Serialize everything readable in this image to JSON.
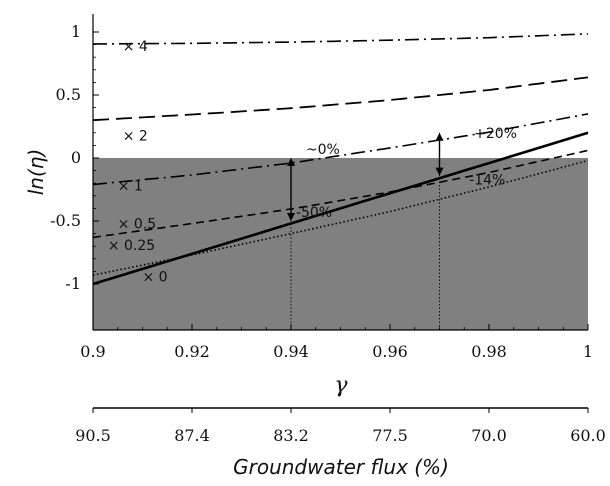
{
  "chart_data": {
    "type": "line",
    "title": "",
    "xlabel": "γ",
    "ylabel": "ln(η)",
    "xlim": [
      0.9,
      1.0
    ],
    "ylim": [
      -1.0,
      1.0
    ],
    "x_ticks": [
      0.9,
      0.92,
      0.94,
      0.96,
      0.98,
      1
    ],
    "x_tick_labels": [
      "0.9",
      "0.92",
      "0.94",
      "0.96",
      "0.98",
      "1"
    ],
    "y_ticks": [
      1,
      0.5,
      0,
      -0.5,
      -1
    ],
    "y_tick_labels": [
      "1",
      "0.5",
      "0",
      "-0.5",
      "-1"
    ],
    "shaded_region": {
      "y_from": -1.0,
      "y_to": 0.0,
      "color": "#808080"
    },
    "series": [
      {
        "name": "× 4",
        "style": "dashdot",
        "label_at": {
          "x": 0.906,
          "y": 0.89
        },
        "x": [
          0.9,
          0.92,
          0.94,
          0.96,
          0.98,
          1.0
        ],
        "y": [
          0.905,
          0.91,
          0.92,
          0.935,
          0.955,
          0.985
        ]
      },
      {
        "name": "× 2",
        "style": "longdash",
        "label_at": {
          "x": 0.906,
          "y": 0.18
        },
        "x": [
          0.9,
          0.92,
          0.94,
          0.96,
          0.98,
          1.0
        ],
        "y": [
          0.3,
          0.345,
          0.395,
          0.46,
          0.54,
          0.64
        ]
      },
      {
        "name": "× 1",
        "style": "dashdot",
        "label_at": {
          "x": 0.905,
          "y": -0.22
        },
        "x": [
          0.9,
          0.92,
          0.94,
          0.96,
          0.98,
          1.0
        ],
        "y": [
          -0.21,
          -0.135,
          -0.04,
          0.08,
          0.205,
          0.35
        ]
      },
      {
        "name": "× 0.5",
        "style": "dash",
        "label_at": {
          "x": 0.905,
          "y": -0.52
        },
        "x": [
          0.9,
          0.92,
          0.94,
          0.96,
          0.98,
          1.0
        ],
        "y": [
          -0.63,
          -0.52,
          -0.405,
          -0.27,
          -0.115,
          0.06
        ]
      },
      {
        "name": "× 0.25",
        "style": "dot",
        "label_at": {
          "x": 0.903,
          "y": -0.69
        },
        "x": [
          0.9,
          0.92,
          0.94,
          0.96,
          0.98,
          1.0
        ],
        "y": [
          -0.93,
          -0.77,
          -0.6,
          -0.425,
          -0.23,
          -0.02
        ]
      },
      {
        "name": "× 0",
        "style": "solid",
        "label_at": {
          "x": 0.91,
          "y": -0.94
        },
        "x": [
          0.9,
          1.0
        ],
        "y": [
          -1.0,
          0.2
        ]
      }
    ],
    "annotations": [
      {
        "text": "~0%",
        "x": 0.943,
        "y": 0.07
      },
      {
        "text": "-50%",
        "x": 0.941,
        "y": -0.43
      },
      {
        "text": "+20%",
        "x": 0.977,
        "y": 0.2
      },
      {
        "text": "-14%",
        "x": 0.976,
        "y": -0.17
      }
    ],
    "arrows": [
      {
        "x": 0.94,
        "y_from": -0.5,
        "y_to": 0.0
      },
      {
        "x": 0.97,
        "y_from": -0.14,
        "y_to": 0.2
      }
    ],
    "drop_lines": [
      {
        "x": 0.94,
        "y_from": -1.0,
        "y_to": 0.0
      },
      {
        "x": 0.97,
        "y_from": -1.0,
        "y_to": 0.2
      }
    ],
    "secondary_x_axis": {
      "label": "Groundwater flux (%)",
      "tick_labels": [
        "90.5",
        "87.4",
        "83.2",
        "77.5",
        "70.0",
        "60.0"
      ]
    }
  }
}
